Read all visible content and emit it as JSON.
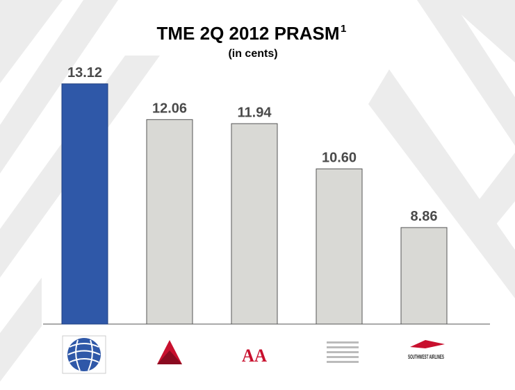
{
  "chart_data": {
    "type": "bar",
    "title": "TME 2Q 2012 PRASM",
    "title_note": "1",
    "subtitle": "(in cents)",
    "categories": [
      null,
      null,
      "AA",
      null,
      "SOUTHWEST AIRLINES"
    ],
    "values": [
      13.12,
      12.06,
      11.94,
      10.6,
      8.86
    ],
    "value_labels": [
      "13.12",
      "12.06",
      "11.94",
      "10.60",
      "8.86"
    ],
    "colors": [
      "#2f58a8",
      "#d9d9d5",
      "#d9d9d5",
      "#d9d9d5",
      "#d9d9d5"
    ],
    "ylim": [
      6,
      14
    ]
  }
}
